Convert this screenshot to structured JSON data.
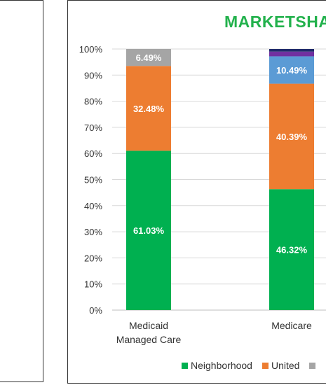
{
  "chart_data": {
    "type": "bar",
    "stacked": true,
    "title": "MARKETSHA",
    "categories": [
      [
        "Medicaid",
        "Managed Care"
      ],
      [
        "Medicare"
      ]
    ],
    "yticks": [
      "0%",
      "10%",
      "20%",
      "30%",
      "40%",
      "50%",
      "60%",
      "70%",
      "80%",
      "90%",
      "100%"
    ],
    "ylim": [
      0,
      100
    ],
    "grid": true,
    "legend_position": "bottom",
    "series": [
      {
        "name": "Neighborhood",
        "color": "#00b050",
        "values": [
          61.03,
          46.32
        ],
        "labels": [
          "61.03%",
          "46.32%"
        ]
      },
      {
        "name": "United",
        "color": "#ed7d31",
        "values": [
          32.48,
          40.39
        ],
        "labels": [
          "32.48%",
          "40.39%"
        ]
      },
      {
        "color": "#a5a5a5",
        "values": [
          6.49,
          0
        ],
        "labels": [
          "6.49%",
          ""
        ]
      },
      {
        "color": "#5b9bd5",
        "values": [
          0,
          10.49
        ],
        "labels": [
          "",
          "10.49%"
        ]
      },
      {
        "color": "#7030a0",
        "values": [
          0,
          1.8
        ],
        "labels": [
          "",
          ""
        ]
      },
      {
        "color": "#1f2a6b",
        "values": [
          0,
          1.0
        ],
        "labels": [
          "",
          ""
        ]
      }
    ],
    "legend_entries": [
      {
        "name": "Neighborhood",
        "color": "#00b050"
      },
      {
        "name": "United",
        "color": "#ed7d31"
      }
    ],
    "legend_partial_color": "#a5a5a5"
  }
}
